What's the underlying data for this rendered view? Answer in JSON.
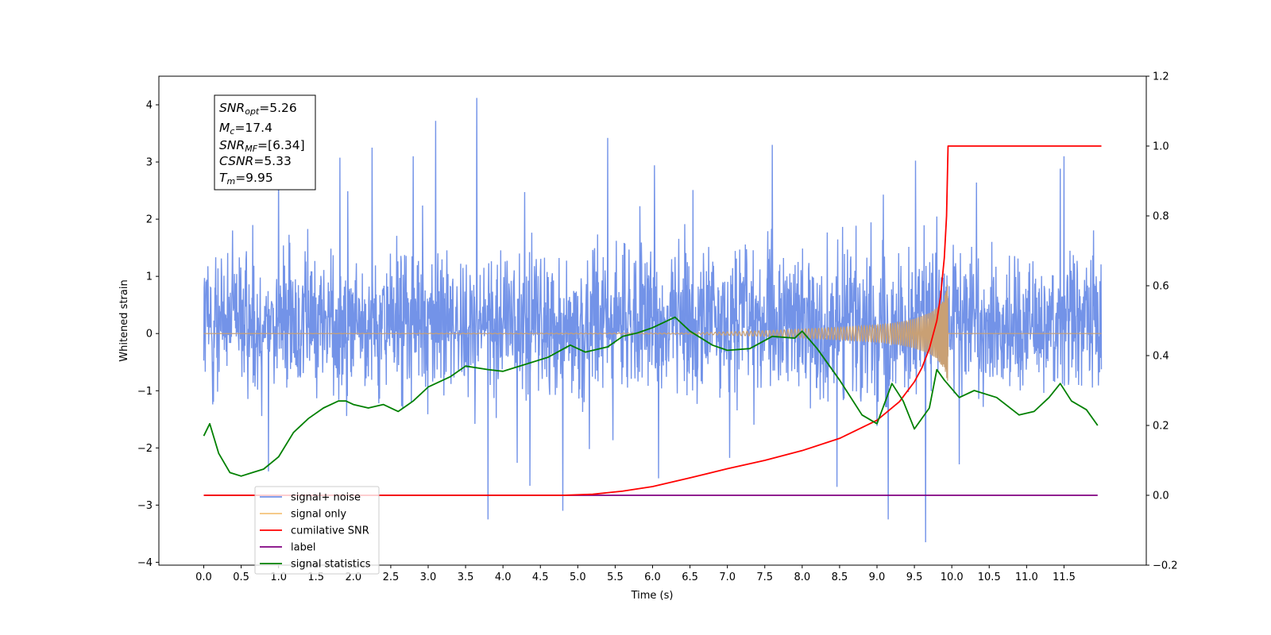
{
  "chart_data": {
    "type": "line",
    "xlabel": "Time (s)",
    "ylabel": "Whitened strain",
    "xlim": [
      -0.6,
      12.6
    ],
    "xticks": [
      "0.0",
      "0.5",
      "1.0",
      "1.5",
      "2.0",
      "2.5",
      "3.0",
      "3.5",
      "4.0",
      "4.5",
      "5.0",
      "5.5",
      "6.0",
      "6.5",
      "7.0",
      "7.5",
      "8.0",
      "8.5",
      "9.0",
      "9.5",
      "10.0",
      "10.5",
      "11.0",
      "11.5"
    ],
    "ylim_left": [
      -4.05,
      4.5
    ],
    "yticks_left": [
      "−4",
      "−3",
      "−2",
      "−1",
      "0",
      "1",
      "2",
      "3",
      "4"
    ],
    "ylim_right": [
      -0.2,
      1.2
    ],
    "yticks_right": [
      "−0.2",
      "0.0",
      "0.2",
      "0.4",
      "0.6",
      "0.8",
      "1.0",
      "1.2"
    ],
    "annotation": {
      "snr_opt": {
        "base": "SNR",
        "sub": "opt",
        "value": "=5.26"
      },
      "mc": {
        "base": "M",
        "sub": "c",
        "value": "=17.4"
      },
      "snr_mf": {
        "base": "SNR",
        "sub": "MF",
        "value": "=[6.34]"
      },
      "csnr": {
        "base": "CSNR",
        "value": "=5.33"
      },
      "tm": {
        "base": "T",
        "sub": "m",
        "value": "=9.95"
      }
    },
    "legend": {
      "placement": "lower-left",
      "entries": [
        {
          "label": "signal+ noise",
          "color": "#7393e8"
        },
        {
          "label": "signal only",
          "color": "#f5c27a"
        },
        {
          "label": "cumilative SNR",
          "color": "#ff0000"
        },
        {
          "label": "label",
          "color": "#800080"
        },
        {
          "label": "signal statistics",
          "color": "#008000"
        }
      ]
    },
    "series": [
      {
        "name": "signal+ noise",
        "axis": "left",
        "color": "#7393e8",
        "t_range": [
          0.0,
          12.0
        ],
        "sample_step": 0.005,
        "envelope_typical": [
          -1.9,
          2.3
        ],
        "extremes": [
          {
            "x": 1.0,
            "y": 2.85
          },
          {
            "x": 2.25,
            "y": 3.25
          },
          {
            "x": 2.8,
            "y": 3.1
          },
          {
            "x": 3.1,
            "y": 3.72
          },
          {
            "x": 3.65,
            "y": 4.12
          },
          {
            "x": 5.4,
            "y": 3.42
          },
          {
            "x": 7.6,
            "y": 3.3
          },
          {
            "x": 11.5,
            "y": 3.1
          },
          {
            "x": 3.8,
            "y": -3.25
          },
          {
            "x": 9.65,
            "y": -3.65
          },
          {
            "x": 4.8,
            "y": -3.1
          },
          {
            "x": 9.15,
            "y": -3.25
          }
        ]
      },
      {
        "name": "signal only",
        "axis": "left",
        "color": "#c9a074",
        "x": [
          0.0,
          6.5,
          7.5,
          8.0,
          8.5,
          9.0,
          9.3,
          9.5,
          9.7,
          9.8,
          9.9,
          9.95,
          9.96,
          12.0
        ],
        "amplitude": [
          0.0,
          0.01,
          0.05,
          0.08,
          0.11,
          0.15,
          0.2,
          0.26,
          0.36,
          0.45,
          0.62,
          0.95,
          0.0,
          0.0
        ]
      },
      {
        "name": "cumilative SNR",
        "axis": "right",
        "color": "#ff0000",
        "x": [
          0.0,
          4.8,
          5.2,
          5.6,
          6.0,
          6.5,
          7.0,
          7.5,
          8.0,
          8.5,
          9.0,
          9.3,
          9.5,
          9.6,
          9.7,
          9.8,
          9.85,
          9.9,
          9.93,
          9.95,
          12.0
        ],
        "y": [
          0.0,
          0.0,
          0.003,
          0.012,
          0.025,
          0.05,
          0.076,
          0.1,
          0.128,
          0.163,
          0.215,
          0.268,
          0.325,
          0.365,
          0.42,
          0.5,
          0.57,
          0.68,
          0.8,
          1.0,
          1.0
        ]
      },
      {
        "name": "label",
        "axis": "right",
        "color": "#800080",
        "x": [
          0.0,
          11.95
        ],
        "y": [
          0.0,
          0.0
        ]
      },
      {
        "name": "signal statistics",
        "axis": "right",
        "color": "#008000",
        "x": [
          0.0,
          0.08,
          0.2,
          0.35,
          0.5,
          0.65,
          0.8,
          1.0,
          1.2,
          1.4,
          1.6,
          1.8,
          1.9,
          2.0,
          2.2,
          2.4,
          2.6,
          2.8,
          3.0,
          3.3,
          3.5,
          3.8,
          4.0,
          4.3,
          4.6,
          4.9,
          5.1,
          5.4,
          5.6,
          5.8,
          6.0,
          6.3,
          6.5,
          6.8,
          7.0,
          7.3,
          7.6,
          7.9,
          8.0,
          8.2,
          8.5,
          8.8,
          9.0,
          9.2,
          9.35,
          9.5,
          9.7,
          9.8,
          9.9,
          10.1,
          10.3,
          10.6,
          10.9,
          11.1,
          11.3,
          11.45,
          11.6,
          11.8,
          11.95
        ],
        "y": [
          0.17,
          0.205,
          0.12,
          0.065,
          0.055,
          0.065,
          0.075,
          0.11,
          0.18,
          0.22,
          0.25,
          0.27,
          0.27,
          0.26,
          0.25,
          0.26,
          0.24,
          0.27,
          0.31,
          0.34,
          0.37,
          0.36,
          0.355,
          0.375,
          0.395,
          0.43,
          0.41,
          0.425,
          0.455,
          0.465,
          0.48,
          0.51,
          0.47,
          0.43,
          0.415,
          0.42,
          0.455,
          0.45,
          0.47,
          0.42,
          0.33,
          0.23,
          0.205,
          0.32,
          0.27,
          0.19,
          0.25,
          0.36,
          0.33,
          0.28,
          0.3,
          0.28,
          0.23,
          0.24,
          0.28,
          0.32,
          0.27,
          0.245,
          0.2
        ]
      }
    ]
  }
}
